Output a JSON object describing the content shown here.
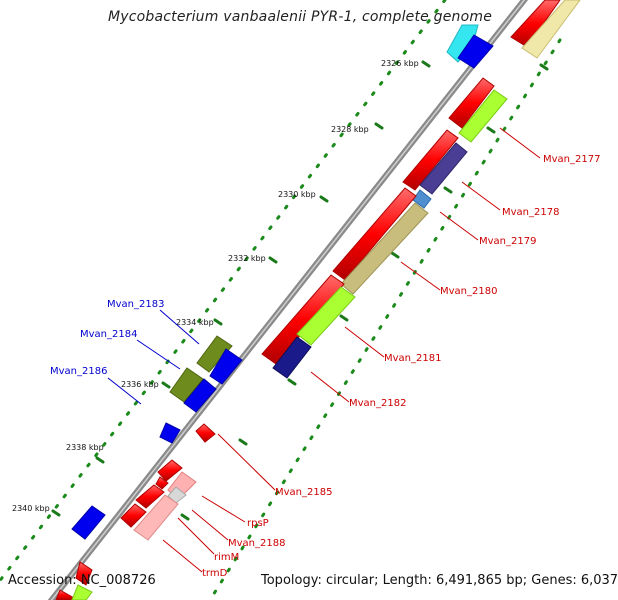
{
  "title": "Mycobacterium vanbaalenii PYR-1, complete genome",
  "footer": {
    "accession": "Accession: NC_008726",
    "topology": "Topology: circular; Length: 6,491,865 bp; Genes: 6,037"
  },
  "ticks": [
    {
      "label": "2326 kbp"
    },
    {
      "label": "2328 kbp"
    },
    {
      "label": "2330 kbp"
    },
    {
      "label": "2332 kbp"
    },
    {
      "label": "2334 kbp"
    },
    {
      "label": "2336 kbp"
    },
    {
      "label": "2338 kbp"
    },
    {
      "label": "2340 kbp"
    }
  ],
  "gene_labels_red": [
    "Mvan_2177",
    "Mvan_2178",
    "Mvan_2179",
    "Mvan_2180",
    "Mvan_2181",
    "Mvan_2182",
    "Mvan_2185",
    "rpsP",
    "Mvan_2188",
    "rimM",
    "trmD"
  ],
  "gene_labels_blue": [
    "Mvan_2183",
    "Mvan_2184",
    "Mvan_2186"
  ],
  "colors": {
    "backbone": "#8a8a8a",
    "forward_gene": "#ff0000",
    "reverse_gene": "#0000ff",
    "label_red": "#cc0000",
    "label_blue": "#0000cc",
    "tick_green": "#1a7a1a",
    "dot_green": "#1a8a1a"
  }
}
